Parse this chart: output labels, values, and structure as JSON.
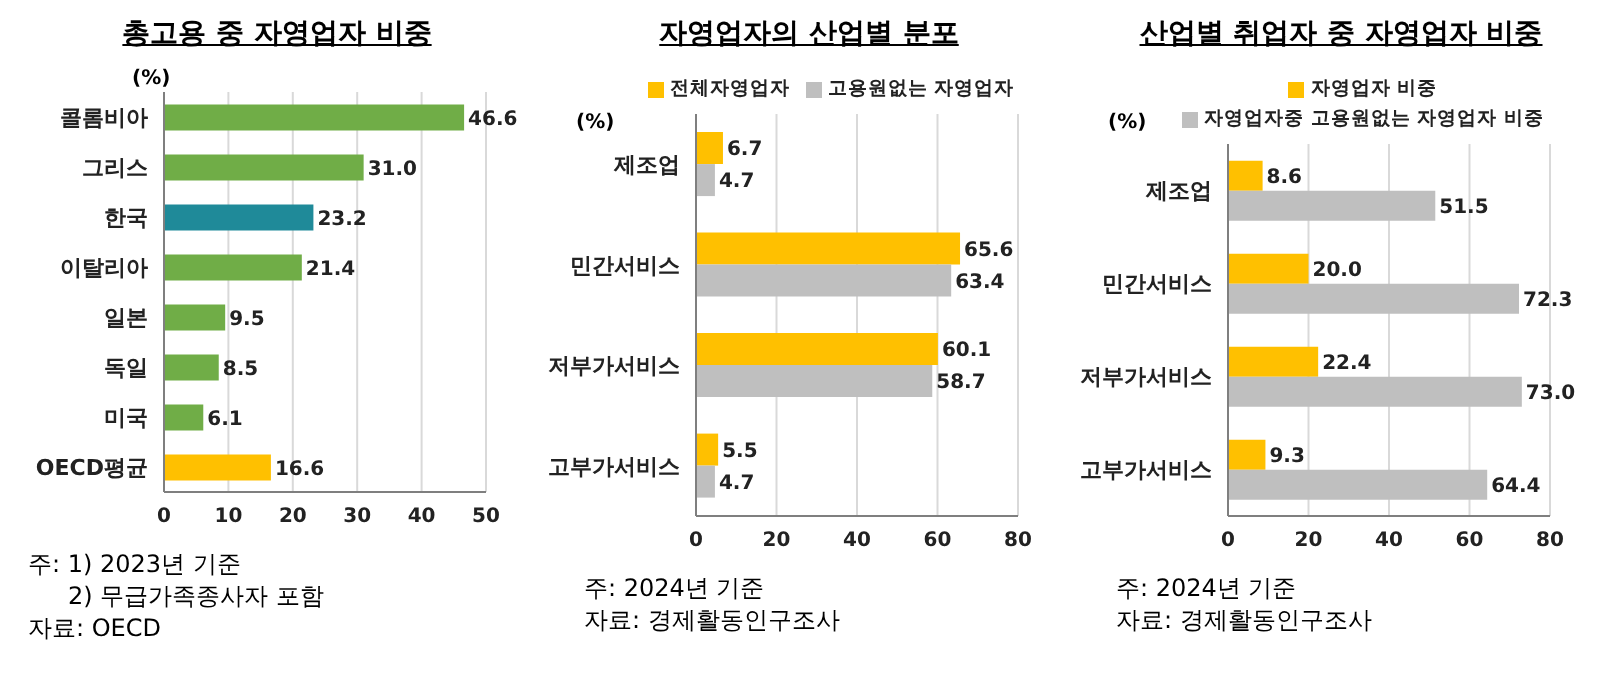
{
  "chart_data": [
    {
      "type": "bar",
      "orientation": "horizontal",
      "title": "총고용 중 자영업자 비중",
      "ylabel": "(%)",
      "categories": [
        "콜롬비아",
        "그리스",
        "한국",
        "이탈리아",
        "일본",
        "독일",
        "미국",
        "OECD평균"
      ],
      "values": [
        46.6,
        31.0,
        23.2,
        21.4,
        9.5,
        8.5,
        6.1,
        16.6
      ],
      "value_labels": [
        "46.6",
        "31.0",
        "23.2",
        "21.4",
        "9.5",
        "8.5",
        "6.1",
        "16.6"
      ],
      "colors": [
        "#70ad47",
        "#70ad47",
        "#1f8a99",
        "#70ad47",
        "#70ad47",
        "#70ad47",
        "#70ad47",
        "#ffc000"
      ],
      "xlim": [
        0,
        50
      ],
      "xticks": [
        0,
        10,
        20,
        30,
        40,
        50
      ],
      "grid": "x",
      "annotations": [
        "주: 1) 2023년 기준",
        "2) 무급가족종사자 포함",
        "자료: OECD"
      ]
    },
    {
      "type": "bar",
      "orientation": "horizontal",
      "title": "자영업자의 산업별 분포",
      "ylabel": "(%)",
      "categories": [
        "제조업",
        "민간서비스",
        "저부가서비스",
        "고부가서비스"
      ],
      "series": [
        {
          "name": "전체자영업자",
          "color": "#ffc000",
          "values": [
            6.7,
            65.6,
            60.1,
            5.5
          ],
          "value_labels": [
            "6.7",
            "65.6",
            "60.1",
            "5.5"
          ]
        },
        {
          "name": "고용원없는 자영업자",
          "color": "#bfbfbf",
          "values": [
            4.7,
            63.4,
            58.7,
            4.7
          ],
          "value_labels": [
            "4.7",
            "63.4",
            "58.7",
            "4.7"
          ]
        }
      ],
      "xlim": [
        0,
        80
      ],
      "xticks": [
        0,
        20,
        40,
        60,
        80
      ],
      "grid": "x",
      "legend": "top",
      "annotations": [
        "주: 2024년 기준",
        "자료: 경제활동인구조사"
      ]
    },
    {
      "type": "bar",
      "orientation": "horizontal",
      "title": "산업별 취업자 중 자영업자 비중",
      "ylabel": "(%)",
      "categories": [
        "제조업",
        "민간서비스",
        "저부가서비스",
        "고부가서비스"
      ],
      "series": [
        {
          "name": "자영업자 비중",
          "color": "#ffc000",
          "values": [
            8.6,
            20.0,
            22.4,
            9.3
          ],
          "value_labels": [
            "8.6",
            "20.0",
            "22.4",
            "9.3"
          ]
        },
        {
          "name": "자영업자중 고용원없는 자영업자 비중",
          "color": "#bfbfbf",
          "values": [
            51.5,
            72.3,
            73.0,
            64.4
          ],
          "value_labels": [
            "51.5",
            "72.3",
            "73.0",
            "64.4"
          ]
        }
      ],
      "xlim": [
        0,
        80
      ],
      "xticks": [
        0,
        20,
        40,
        60,
        80
      ],
      "grid": "x",
      "legend": "top",
      "annotations": [
        "주: 2024년 기준",
        "자료: 경제활동인구조사"
      ]
    }
  ]
}
